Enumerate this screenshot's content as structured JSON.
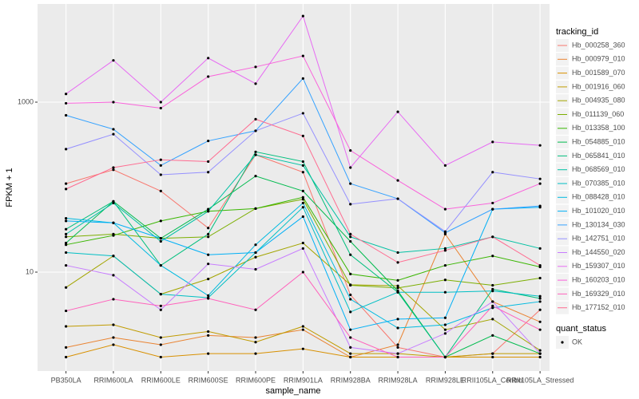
{
  "chart_data": {
    "type": "line",
    "x_label": "sample_name",
    "y_label": "FPKM + 1",
    "categories": [
      "PB350LA",
      "RRIM600LA",
      "RRIM600LE",
      "RRIM600SE",
      "RRIM600PE",
      "RRIM901LA",
      "RRIM928BA",
      "RRIM928LA",
      "RRIM928LE",
      "RRII105LA_Control",
      "RRII105LA_Stressed"
    ],
    "log_y": true,
    "ylim": [
      0.685,
      14290
    ],
    "yticks": [
      10,
      1000
    ],
    "grid": true,
    "legend_title": "tracking_id",
    "legend_position": "right",
    "point_color": "#000000",
    "point_legend": {
      "title": "quant_status",
      "labels": [
        "OK"
      ]
    },
    "series": [
      {
        "name": "Hb_000258_360",
        "color": "#F8766D",
        "values": [
          110,
          160,
          90,
          33,
          240,
          150,
          5.4,
          1.3,
          1.0,
          1.1,
          3.6
        ]
      },
      {
        "name": "Hb_000979_010",
        "color": "#EA8331",
        "values": [
          1.3,
          1.7,
          1.4,
          1.8,
          1.7,
          2.1,
          1.0,
          1.4,
          28,
          4.5,
          2.6
        ]
      },
      {
        "name": "Hb_001589_070",
        "color": "#D89000",
        "values": [
          1.0,
          1.4,
          1.0,
          1.1,
          1.1,
          1.25,
          1.0,
          1.0,
          1.0,
          1.0,
          1.0
        ]
      },
      {
        "name": "Hb_001916_060",
        "color": "#C09B00",
        "values": [
          2.3,
          2.4,
          1.7,
          2.0,
          1.5,
          2.3,
          1.1,
          1.1,
          1.0,
          1.1,
          1.1
        ]
      },
      {
        "name": "Hb_004935_080",
        "color": "#A3A500",
        "values": [
          6.6,
          15.5,
          5.5,
          8.3,
          15,
          22,
          7.1,
          6.9,
          2.1,
          2.8,
          1.2
        ]
      },
      {
        "name": "Hb_011139_060",
        "color": "#7CAE00",
        "values": [
          26,
          28,
          25,
          26,
          56,
          72,
          7,
          6.5,
          8.1,
          7,
          8.5
        ]
      },
      {
        "name": "Hb_013358_100",
        "color": "#39B600",
        "values": [
          21,
          27,
          40,
          52,
          56,
          76,
          9.5,
          8,
          12,
          15.5,
          11.5
        ]
      },
      {
        "name": "Hb_054885_010",
        "color": "#00BB4E",
        "values": [
          22,
          68,
          25,
          55,
          135,
          90,
          23,
          6,
          1.0,
          1.8,
          1.1
        ]
      },
      {
        "name": "Hb_065841_010",
        "color": "#00BF7D",
        "values": [
          32,
          68,
          12,
          28,
          260,
          200,
          16,
          5.8,
          1.0,
          6.3,
          4.9
        ]
      },
      {
        "name": "Hb_068569_010",
        "color": "#00C1A3",
        "values": [
          28,
          65,
          23,
          52,
          240,
          180,
          26,
          17,
          19,
          26,
          19
        ]
      },
      {
        "name": "Hb_070385_010",
        "color": "#00BFC4",
        "values": [
          17,
          15.5,
          5.5,
          5,
          17,
          58,
          3.4,
          5.8,
          5.8,
          6,
          5.2
        ]
      },
      {
        "name": "Hb_088428_010",
        "color": "#00BAE0",
        "values": [
          43,
          38,
          12,
          5.3,
          21,
          65,
          4.8,
          2.2,
          2.4,
          3.8,
          4.5
        ]
      },
      {
        "name": "Hb_101020_010",
        "color": "#00B0F6",
        "values": [
          40,
          38,
          25,
          16,
          17,
          45,
          2.1,
          2.8,
          2.9,
          55,
          58
        ]
      },
      {
        "name": "Hb_130134_030",
        "color": "#35A2FF",
        "values": [
          700,
          480,
          180,
          350,
          460,
          1900,
          110,
          73,
          29,
          55,
          60
        ]
      },
      {
        "name": "Hb_142751_010",
        "color": "#9590FF",
        "values": [
          280,
          420,
          140,
          150,
          460,
          740,
          63,
          73,
          30,
          150,
          125
        ]
      },
      {
        "name": "Hb_144550_020",
        "color": "#C77CFF",
        "values": [
          12,
          9.2,
          3.6,
          12.5,
          10.8,
          19,
          1.3,
          1.1,
          1.9,
          4.5,
          1.1
        ]
      },
      {
        "name": "Hb_159307_010",
        "color": "#E76BF3",
        "values": [
          1250,
          3100,
          1000,
          3300,
          1650,
          10300,
          170,
          770,
          180,
          340,
          310
        ]
      },
      {
        "name": "Hb_160203_010",
        "color": "#FA62DB",
        "values": [
          970,
          1000,
          850,
          2000,
          2600,
          3500,
          270,
          120,
          55,
          65,
          110
        ]
      },
      {
        "name": "Hb_169329_010",
        "color": "#FF62BC",
        "values": [
          3.5,
          4.8,
          4.0,
          4.9,
          3.6,
          10,
          1.7,
          1.0,
          1.0,
          4.0,
          2.1
        ]
      },
      {
        "name": "Hb_177152_010",
        "color": "#FF6C91",
        "values": [
          95,
          170,
          210,
          200,
          630,
          400,
          28,
          13,
          18,
          26,
          12
        ]
      }
    ]
  }
}
